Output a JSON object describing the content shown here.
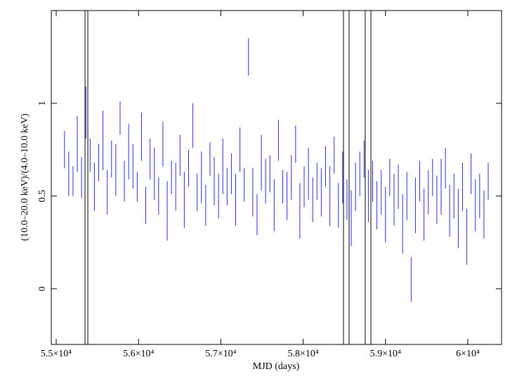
{
  "chart_data": {
    "type": "errorbar",
    "xlabel": "MJD (days)",
    "ylabel": "(10.0–20.0 keV)/(4.0–10.0 keV)",
    "color": "#2a2ae0",
    "xlim": [
      54940,
      60410
    ],
    "ylim": [
      -0.3,
      1.5
    ],
    "xticks": [
      {
        "value": 55000,
        "label": "5.5×10⁴"
      },
      {
        "value": 56000,
        "label": "5.6×10⁴"
      },
      {
        "value": 57000,
        "label": "5.7×10⁴"
      },
      {
        "value": 58000,
        "label": "5.8×10⁴"
      },
      {
        "value": 59000,
        "label": "5.9×10⁴"
      },
      {
        "value": 60000,
        "label": "6×10⁴"
      }
    ],
    "yticks": [
      0,
      0.5,
      1
    ],
    "vlines": [
      55350,
      55384,
      58490,
      58558,
      58754,
      58823
    ],
    "vline_color": "#000000",
    "x": [
      55100,
      55152,
      55204,
      55256,
      55308,
      55360,
      55412,
      55464,
      55516,
      55568,
      55620,
      55672,
      55724,
      55776,
      55828,
      55880,
      55932,
      55984,
      56036,
      56088,
      56140,
      56192,
      56244,
      56296,
      56348,
      56400,
      56452,
      56504,
      56556,
      56608,
      56660,
      56712,
      56764,
      56816,
      56868,
      56920,
      56972,
      57024,
      57076,
      57128,
      57180,
      57232,
      57284,
      57336,
      57388,
      57440,
      57492,
      57544,
      57596,
      57648,
      57700,
      57752,
      57804,
      57856,
      57908,
      57960,
      58012,
      58064,
      58116,
      58168,
      58220,
      58272,
      58324,
      58376,
      58428,
      58480,
      58532,
      58584,
      58636,
      58688,
      58740,
      58792,
      58844,
      58896,
      58948,
      59000,
      59052,
      59104,
      59156,
      59208,
      59260,
      59312,
      59364,
      59416,
      59468,
      59520,
      59572,
      59624,
      59676,
      59728,
      59780,
      59832,
      59884,
      59936,
      59988,
      60040,
      60092,
      60144,
      60196,
      60248
    ],
    "values": [
      0.75,
      0.62,
      0.58,
      0.78,
      0.6,
      0.95,
      0.72,
      0.55,
      0.68,
      0.8,
      0.52,
      0.7,
      0.64,
      0.92,
      0.58,
      0.74,
      0.66,
      0.55,
      0.82,
      0.45,
      0.7,
      0.62,
      0.5,
      0.78,
      0.42,
      0.6,
      0.55,
      0.72,
      0.48,
      0.65,
      0.88,
      0.52,
      0.6,
      0.45,
      0.7,
      0.58,
      0.5,
      0.66,
      0.55,
      0.62,
      0.48,
      0.75,
      0.56,
      1.25,
      0.52,
      0.4,
      0.68,
      0.58,
      0.62,
      0.45,
      0.8,
      0.55,
      0.5,
      0.6,
      0.78,
      0.42,
      0.55,
      0.62,
      0.48,
      0.58,
      0.52,
      0.66,
      0.5,
      0.72,
      0.45,
      0.6,
      0.48,
      0.38,
      0.55,
      0.62,
      0.7,
      0.5,
      0.58,
      0.45,
      0.52,
      0.4,
      0.6,
      0.48,
      0.55,
      0.35,
      0.5,
      0.05,
      0.45,
      0.58,
      0.4,
      0.52,
      0.6,
      0.48,
      0.55,
      0.65,
      0.42,
      0.5,
      0.38,
      0.55,
      0.28,
      0.62,
      0.45,
      0.5,
      0.4,
      0.58
    ],
    "errors": [
      0.1,
      0.12,
      0.08,
      0.15,
      0.11,
      0.14,
      0.09,
      0.13,
      0.1,
      0.16,
      0.12,
      0.1,
      0.14,
      0.09,
      0.11,
      0.15,
      0.12,
      0.08,
      0.13,
      0.1,
      0.11,
      0.14,
      0.1,
      0.12,
      0.16,
      0.09,
      0.13,
      0.11,
      0.15,
      0.1,
      0.12,
      0.1,
      0.14,
      0.11,
      0.09,
      0.13,
      0.12,
      0.15,
      0.1,
      0.11,
      0.14,
      0.12,
      0.09,
      0.1,
      0.13,
      0.11,
      0.15,
      0.12,
      0.1,
      0.14,
      0.11,
      0.09,
      0.13,
      0.12,
      0.1,
      0.15,
      0.11,
      0.14,
      0.12,
      0.1,
      0.13,
      0.11,
      0.16,
      0.1,
      0.12,
      0.14,
      0.11,
      0.15,
      0.13,
      0.12,
      0.1,
      0.14,
      0.11,
      0.13,
      0.12,
      0.15,
      0.1,
      0.14,
      0.12,
      0.16,
      0.13,
      0.12,
      0.15,
      0.11,
      0.14,
      0.12,
      0.1,
      0.13,
      0.15,
      0.11,
      0.14,
      0.12,
      0.16,
      0.13,
      0.15,
      0.11,
      0.14,
      0.12,
      0.13,
      0.1
    ]
  }
}
